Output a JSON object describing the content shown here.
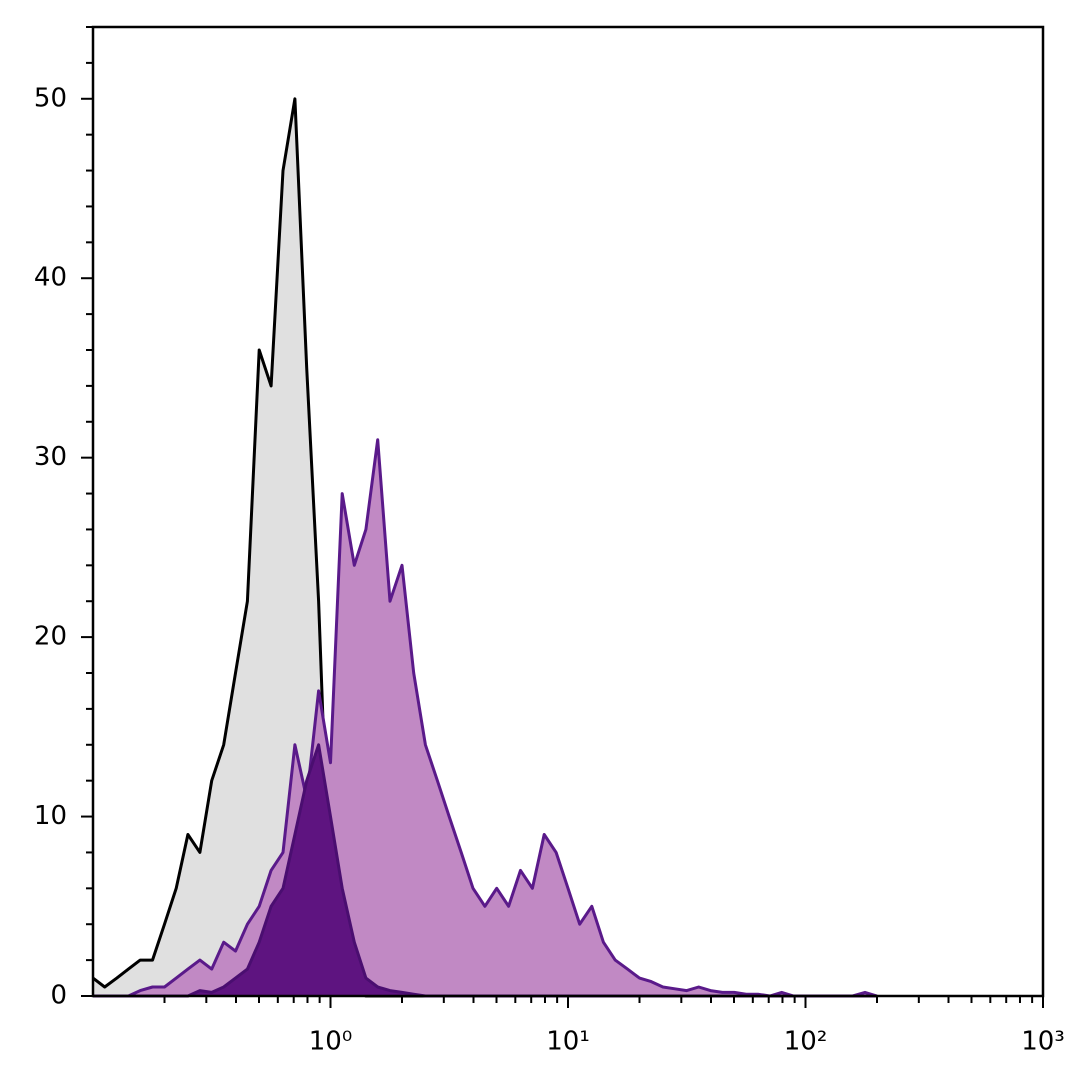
{
  "chart_data": {
    "type": "area",
    "xscale": "log",
    "x": [
      0.1,
      0.112,
      0.126,
      0.141,
      0.158,
      0.178,
      0.2,
      0.224,
      0.251,
      0.282,
      0.316,
      0.355,
      0.398,
      0.447,
      0.501,
      0.562,
      0.631,
      0.708,
      0.794,
      0.891,
      1,
      1.12,
      1.26,
      1.41,
      1.58,
      1.78,
      2,
      2.24,
      2.51,
      2.82,
      3.16,
      3.55,
      3.98,
      4.47,
      5.01,
      5.62,
      6.31,
      7.08,
      7.94,
      8.91,
      10,
      11.2,
      12.6,
      14.1,
      15.8,
      17.8,
      20,
      22.4,
      25.1,
      28.2,
      31.6,
      35.5,
      39.8,
      44.7,
      50.1,
      56.2,
      63.1,
      70.8,
      79.4,
      89.1,
      100,
      112,
      126,
      141,
      158,
      178,
      200
    ],
    "series": [
      {
        "color": "#e0e0e0",
        "stroke": "#000000",
        "values": [
          1,
          0.5,
          1,
          1.5,
          2,
          2,
          4,
          6,
          9,
          8,
          12,
          14,
          18,
          22,
          36,
          34,
          46,
          50,
          35,
          22,
          4,
          1,
          0.3,
          0,
          0,
          0,
          0,
          0,
          0,
          0,
          0,
          0,
          0,
          0,
          0,
          0,
          0,
          0,
          0,
          0,
          0,
          0,
          0,
          0,
          0,
          0,
          0,
          0,
          0,
          0,
          0,
          0,
          0,
          0,
          0,
          0,
          0,
          0,
          0,
          0,
          0,
          0,
          0,
          0,
          0,
          0,
          0
        ]
      },
      {
        "color": "#c189c4",
        "stroke": "#5a1a8a",
        "values": [
          0,
          0,
          0,
          0,
          0.3,
          0.5,
          0.5,
          1,
          1.5,
          2,
          1.5,
          3,
          2.5,
          4,
          5,
          7,
          8,
          14,
          11,
          17,
          13,
          28,
          24,
          26,
          31,
          22,
          24,
          18,
          14,
          12,
          10,
          8,
          6,
          5,
          6,
          5,
          7,
          6,
          9,
          8,
          6,
          4,
          5,
          3,
          2,
          1.5,
          1,
          0.8,
          0.5,
          0.4,
          0.3,
          0.5,
          0.3,
          0.2,
          0.2,
          0.1,
          0.1,
          0,
          0.2,
          0,
          0,
          0,
          0,
          0,
          0,
          0.2,
          0
        ]
      },
      {
        "color": "#5e1480",
        "stroke": "#4a0e70",
        "values": [
          0,
          0,
          0,
          0,
          0,
          0,
          0,
          0,
          0,
          0.3,
          0.2,
          0.5,
          1,
          1.5,
          3,
          5,
          6,
          9,
          12,
          14,
          10,
          6,
          3,
          1,
          0.5,
          0.3,
          0.2,
          0.1,
          0,
          0,
          0,
          0,
          0,
          0,
          0,
          0,
          0,
          0,
          0,
          0,
          0,
          0,
          0,
          0,
          0,
          0,
          0,
          0,
          0,
          0,
          0,
          0,
          0,
          0,
          0,
          0,
          0,
          0,
          0,
          0,
          0,
          0,
          0,
          0,
          0,
          0,
          0
        ]
      }
    ],
    "xlim": [
      0.1,
      1000
    ],
    "xticks": [
      {
        "value": 1,
        "label": "10⁰"
      },
      {
        "value": 10,
        "label": "10¹"
      },
      {
        "value": 100,
        "label": "10²"
      },
      {
        "value": 1000,
        "label": "10³"
      }
    ],
    "xminorticks": [
      0.2,
      0.3,
      0.4,
      0.5,
      0.6,
      0.7,
      0.8,
      0.9,
      2,
      3,
      4,
      5,
      6,
      7,
      8,
      9,
      20,
      30,
      40,
      50,
      60,
      70,
      80,
      90,
      200,
      300,
      400,
      500,
      600,
      700,
      800,
      900
    ],
    "ylim": [
      0,
      54
    ],
    "yticks": [
      0,
      10,
      20,
      30,
      40,
      50
    ],
    "yminorticks": [
      2,
      4,
      6,
      8,
      12,
      14,
      16,
      18,
      22,
      24,
      26,
      28,
      32,
      34,
      36,
      38,
      42,
      44,
      46,
      48,
      52,
      54
    ]
  }
}
